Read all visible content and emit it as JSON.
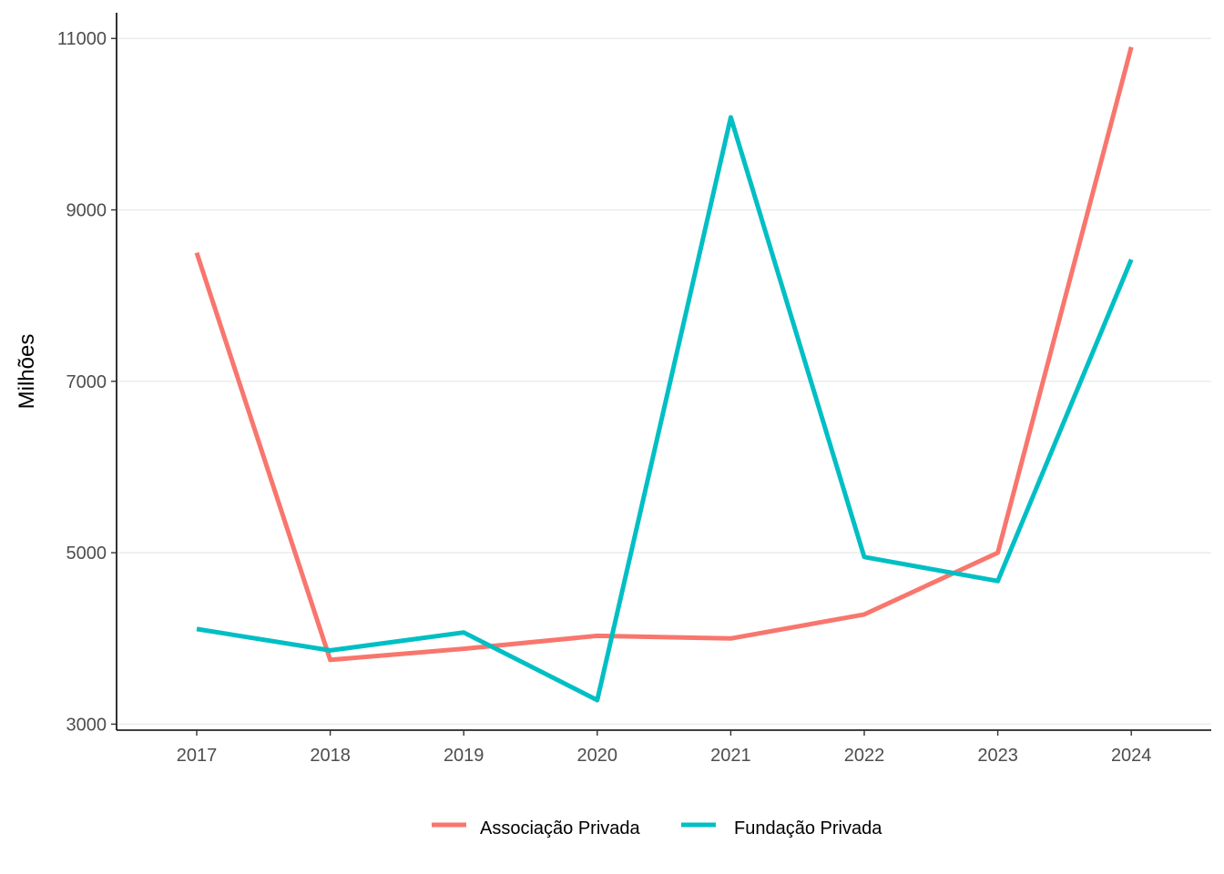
{
  "chart_data": {
    "type": "line",
    "title": "",
    "xlabel": "",
    "ylabel": "Milhões",
    "x": [
      "2017",
      "2018",
      "2019",
      "2020",
      "2021",
      "2022",
      "2023",
      "2024"
    ],
    "yticks": [
      "3000",
      "5000",
      "7000",
      "9000",
      "11000"
    ],
    "ylim": [
      2930,
      11300
    ],
    "grid": "horizontal major lines",
    "legend_position": "bottom",
    "series": [
      {
        "name": "Associação Privada",
        "color": "#F8766D",
        "values": [
          8500,
          3750,
          3880,
          4030,
          4000,
          4280,
          5000,
          10900
        ]
      },
      {
        "name": "Fundação Privada",
        "color": "#00BFC4",
        "values": [
          4110,
          3860,
          4070,
          3280,
          10080,
          4950,
          4670,
          8420
        ]
      }
    ]
  }
}
